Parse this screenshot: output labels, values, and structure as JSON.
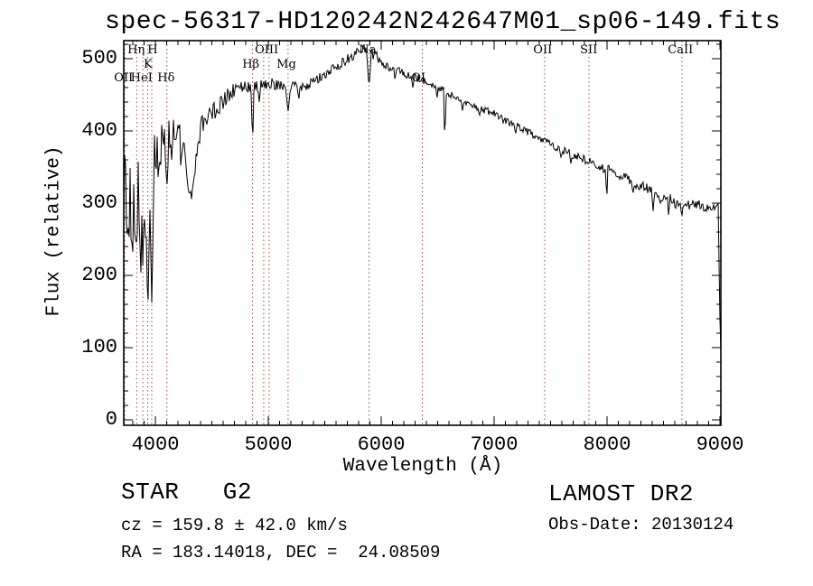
{
  "page_title": "spec-56317-HD120242N242647M01_sp06-149.fits",
  "chart_data": {
    "type": "line",
    "title": "spec-56317-HD120242N242647M01_sp06-149.fits",
    "xlabel": "Wavelength (Å)",
    "ylabel": "Flux (relative)",
    "xlim": [
      3720,
      9008
    ],
    "ylim": [
      -7,
      525
    ],
    "x_ticks": [
      4000,
      5000,
      6000,
      7000,
      8000,
      9000
    ],
    "y_ticks": [
      0,
      100,
      200,
      300,
      400,
      500
    ],
    "x_minor_step": 100,
    "y_minor_step": 20,
    "grid": false,
    "legend": "none",
    "series": [
      {
        "name": "spectrum",
        "color": "#000000",
        "envelope_points": [
          [
            3720,
            310
          ],
          [
            3745,
            295
          ],
          [
            3770,
            305
          ],
          [
            3800,
            295
          ],
          [
            3830,
            300
          ],
          [
            3860,
            310
          ],
          [
            3900,
            325
          ],
          [
            3940,
            330
          ],
          [
            3970,
            345
          ],
          [
            4000,
            365
          ],
          [
            4050,
            382
          ],
          [
            4100,
            390
          ],
          [
            4150,
            398
          ],
          [
            4200,
            400
          ],
          [
            4250,
            388
          ],
          [
            4290,
            345
          ],
          [
            4320,
            318
          ],
          [
            4360,
            365
          ],
          [
            4400,
            405
          ],
          [
            4450,
            420
          ],
          [
            4500,
            428
          ],
          [
            4550,
            433
          ],
          [
            4600,
            440
          ],
          [
            4650,
            450
          ],
          [
            4700,
            458
          ],
          [
            4750,
            461
          ],
          [
            4800,
            464
          ],
          [
            4860,
            459
          ],
          [
            4900,
            461
          ],
          [
            4950,
            464
          ],
          [
            5000,
            467
          ],
          [
            5060,
            464
          ],
          [
            5120,
            464
          ],
          [
            5175,
            459
          ],
          [
            5230,
            463
          ],
          [
            5300,
            461
          ],
          [
            5360,
            464
          ],
          [
            5420,
            469
          ],
          [
            5480,
            476
          ],
          [
            5540,
            483
          ],
          [
            5600,
            489
          ],
          [
            5660,
            495
          ],
          [
            5720,
            502
          ],
          [
            5780,
            509
          ],
          [
            5840,
            514
          ],
          [
            5880,
            512
          ],
          [
            5920,
            506
          ],
          [
            5960,
            503
          ],
          [
            6000,
            495
          ],
          [
            6100,
            487
          ],
          [
            6200,
            479
          ],
          [
            6300,
            474
          ],
          [
            6400,
            467
          ],
          [
            6500,
            461
          ],
          [
            6600,
            451
          ],
          [
            6700,
            445
          ],
          [
            6800,
            437
          ],
          [
            6900,
            430
          ],
          [
            7000,
            424
          ],
          [
            7100,
            414
          ],
          [
            7200,
            407
          ],
          [
            7300,
            398
          ],
          [
            7400,
            391
          ],
          [
            7500,
            381
          ],
          [
            7600,
            374
          ],
          [
            7700,
            367
          ],
          [
            7800,
            361
          ],
          [
            7900,
            352
          ],
          [
            8000,
            347
          ],
          [
            8100,
            339
          ],
          [
            8200,
            331
          ],
          [
            8300,
            324
          ],
          [
            8400,
            317
          ],
          [
            8500,
            309
          ],
          [
            8600,
            304
          ],
          [
            8700,
            297
          ],
          [
            8800,
            299
          ],
          [
            8900,
            294
          ],
          [
            8960,
            297
          ],
          [
            9008,
            292
          ]
        ],
        "absorption_features": [
          [
            3755,
            245,
            1
          ],
          [
            3797,
            215,
            1
          ],
          [
            3820,
            250,
            1
          ],
          [
            3835,
            230,
            1
          ],
          [
            3870,
            185,
            1
          ],
          [
            3889,
            205,
            1
          ],
          [
            3910,
            240,
            1
          ],
          [
            3933,
            140,
            2
          ],
          [
            3968,
            162,
            2
          ],
          [
            4026,
            330,
            1
          ],
          [
            4045,
            345,
            1
          ],
          [
            4102,
            320,
            2
          ],
          [
            4144,
            360,
            1
          ],
          [
            4226,
            345,
            1
          ],
          [
            4300,
            312,
            4
          ],
          [
            4340,
            335,
            2
          ],
          [
            4383,
            385,
            1
          ],
          [
            4455,
            408,
            1
          ],
          [
            4530,
            415,
            1
          ],
          [
            4861,
            380,
            1
          ],
          [
            4920,
            440,
            1
          ],
          [
            5175,
            426,
            2
          ],
          [
            5270,
            442,
            1
          ],
          [
            5892,
            459,
            2
          ],
          [
            6122,
            470,
            1
          ],
          [
            6280,
            460,
            1
          ],
          [
            6495,
            445,
            1
          ],
          [
            6563,
            386,
            1
          ],
          [
            6720,
            428,
            1
          ],
          [
            6870,
            420,
            1
          ],
          [
            7190,
            395,
            1
          ],
          [
            7594,
            362,
            1
          ],
          [
            7680,
            355,
            1
          ],
          [
            7998,
            307,
            1
          ],
          [
            8230,
            312,
            1
          ],
          [
            8408,
            289,
            1
          ],
          [
            8470,
            298,
            1
          ],
          [
            8545,
            282,
            1
          ],
          [
            8605,
            290,
            1
          ],
          [
            8662,
            280,
            1
          ],
          [
            8860,
            286,
            1
          ],
          [
            9006,
            78,
            2
          ]
        ],
        "noise_amplitude": [
          [
            3720,
            62
          ],
          [
            3850,
            55
          ],
          [
            3950,
            45
          ],
          [
            4020,
            28
          ],
          [
            4150,
            20
          ],
          [
            4300,
            17
          ],
          [
            4450,
            13
          ],
          [
            4700,
            10
          ],
          [
            5000,
            8
          ],
          [
            5400,
            7
          ],
          [
            5800,
            8
          ],
          [
            6200,
            6
          ],
          [
            6600,
            5
          ],
          [
            7000,
            5
          ],
          [
            7400,
            5
          ],
          [
            7800,
            6
          ],
          [
            8200,
            7
          ],
          [
            8600,
            7
          ],
          [
            9008,
            6
          ]
        ]
      }
    ],
    "line_markers": {
      "color": "#a04a40",
      "wavelengths": [
        3727,
        3835,
        3889,
        3933,
        3968,
        4102,
        4861,
        4959,
        5007,
        5175,
        5892,
        6364,
        7448,
        7840,
        8664
      ],
      "labels": [
        {
          "text": "Hη",
          "wavelength": 3830,
          "row": 1
        },
        {
          "text": "H",
          "wavelength": 3975,
          "row": 1
        },
        {
          "text": "OIII",
          "wavelength": 4985,
          "row": 1
        },
        {
          "text": "Na",
          "wavelength": 5880,
          "row": 1
        },
        {
          "text": "OII",
          "wavelength": 7430,
          "row": 1
        },
        {
          "text": "SII",
          "wavelength": 7838,
          "row": 1
        },
        {
          "text": "CaII",
          "wavelength": 8650,
          "row": 1
        },
        {
          "text": "K",
          "wavelength": 3935,
          "row": 2
        },
        {
          "text": "Hβ",
          "wavelength": 4845,
          "row": 2
        },
        {
          "text": "Mg",
          "wavelength": 5160,
          "row": 2
        },
        {
          "text": "OII",
          "wavelength": 3718,
          "row": 3
        },
        {
          "text": "HeI",
          "wavelength": 3878,
          "row": 3
        },
        {
          "text": "Hδ",
          "wavelength": 4095,
          "row": 3
        },
        {
          "text": "OI",
          "wavelength": 6330,
          "row": 3
        }
      ]
    }
  },
  "annotations": {
    "class_label": "STAR   G2",
    "cz": "cz = 159.8 ± 42.0 km/s",
    "ra_dec": "RA = 183.14018, DEC =  24.08509",
    "survey": "LAMOST DR2",
    "obs_date": "Obs-Date: 20130124"
  },
  "colors": {
    "background": "#ffffff",
    "spectrum": "#000000",
    "marker_line": "#a04a40",
    "text": "#000000"
  }
}
